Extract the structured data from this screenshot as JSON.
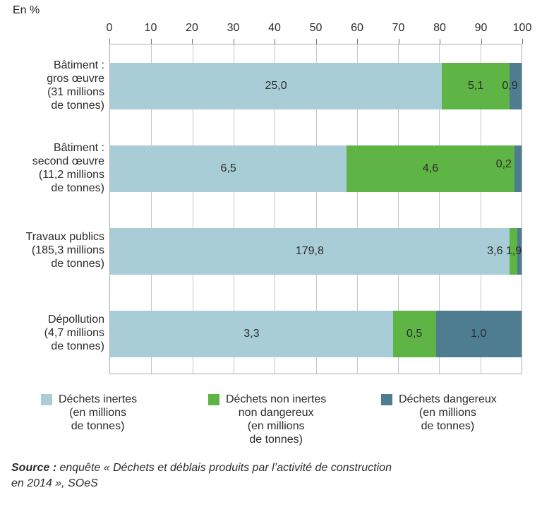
{
  "chart_data": {
    "type": "bar",
    "variant": "stacked-horizontal-100pct",
    "unit_label": "En %",
    "grid": true,
    "legend_position": "bottom",
    "axis": {
      "min": 0,
      "max": 100,
      "ticks": [
        0,
        10,
        20,
        30,
        40,
        50,
        60,
        70,
        80,
        90,
        100
      ]
    },
    "categories": [
      {
        "lines": [
          "Bâtiment :",
          "gros œuvre",
          "(31 millions",
          "de tonnes)"
        ]
      },
      {
        "lines": [
          "Bâtiment :",
          "second œuvre",
          "(11,2 millions",
          "de tonnes)"
        ]
      },
      {
        "lines": [
          "Travaux publics",
          "(185,3 millions",
          "de tonnes)"
        ]
      },
      {
        "lines": [
          "Dépollution",
          "(4,7 millions",
          "de tonnes)"
        ]
      }
    ],
    "series": [
      {
        "name": "Déchets inertes (en millions de tonnes)",
        "color": "#a9cdd7",
        "values": [
          25.0,
          6.5,
          179.8,
          3.3
        ],
        "value_labels": [
          "25,0",
          "6,5",
          "179,8",
          "3,3"
        ]
      },
      {
        "name": "Déchets non inertes non dangereux (en millions de tonnes)",
        "color": "#5eb445",
        "values": [
          5.1,
          4.6,
          3.6,
          0.5
        ],
        "value_labels": [
          "5,1",
          "4,6",
          "3,6",
          "0,5"
        ],
        "label_dx": [
          0,
          0,
          -26,
          0
        ],
        "label_dy": [
          0,
          0,
          0,
          0
        ]
      },
      {
        "name": "Déchets dangereux (en millions de tonnes)",
        "color": "#4e7d92",
        "values": [
          0.9,
          0.2,
          1.9,
          1.0
        ],
        "value_labels": [
          "0,9",
          "0,2",
          "1,9",
          "1,0"
        ],
        "label_dx": [
          -8,
          -20,
          -8,
          0
        ],
        "label_dy": [
          0,
          -6,
          0,
          0
        ]
      }
    ],
    "legend": [
      {
        "color": "#a9cdd7",
        "lines": [
          "Déchets inertes",
          "(en millions",
          "de tonnes)"
        ]
      },
      {
        "color": "#5eb445",
        "lines": [
          "Déchets non inertes",
          "non dangereux",
          "(en millions",
          "de tonnes)"
        ]
      },
      {
        "color": "#4e7d92",
        "lines": [
          "Déchets dangereux",
          "(en millions",
          "de tonnes)"
        ]
      }
    ]
  },
  "source": {
    "prefix": "Source :",
    "text": " enquête « Déchets et déblais produits par l’activité de construction\nen 2014 », SOeS"
  }
}
